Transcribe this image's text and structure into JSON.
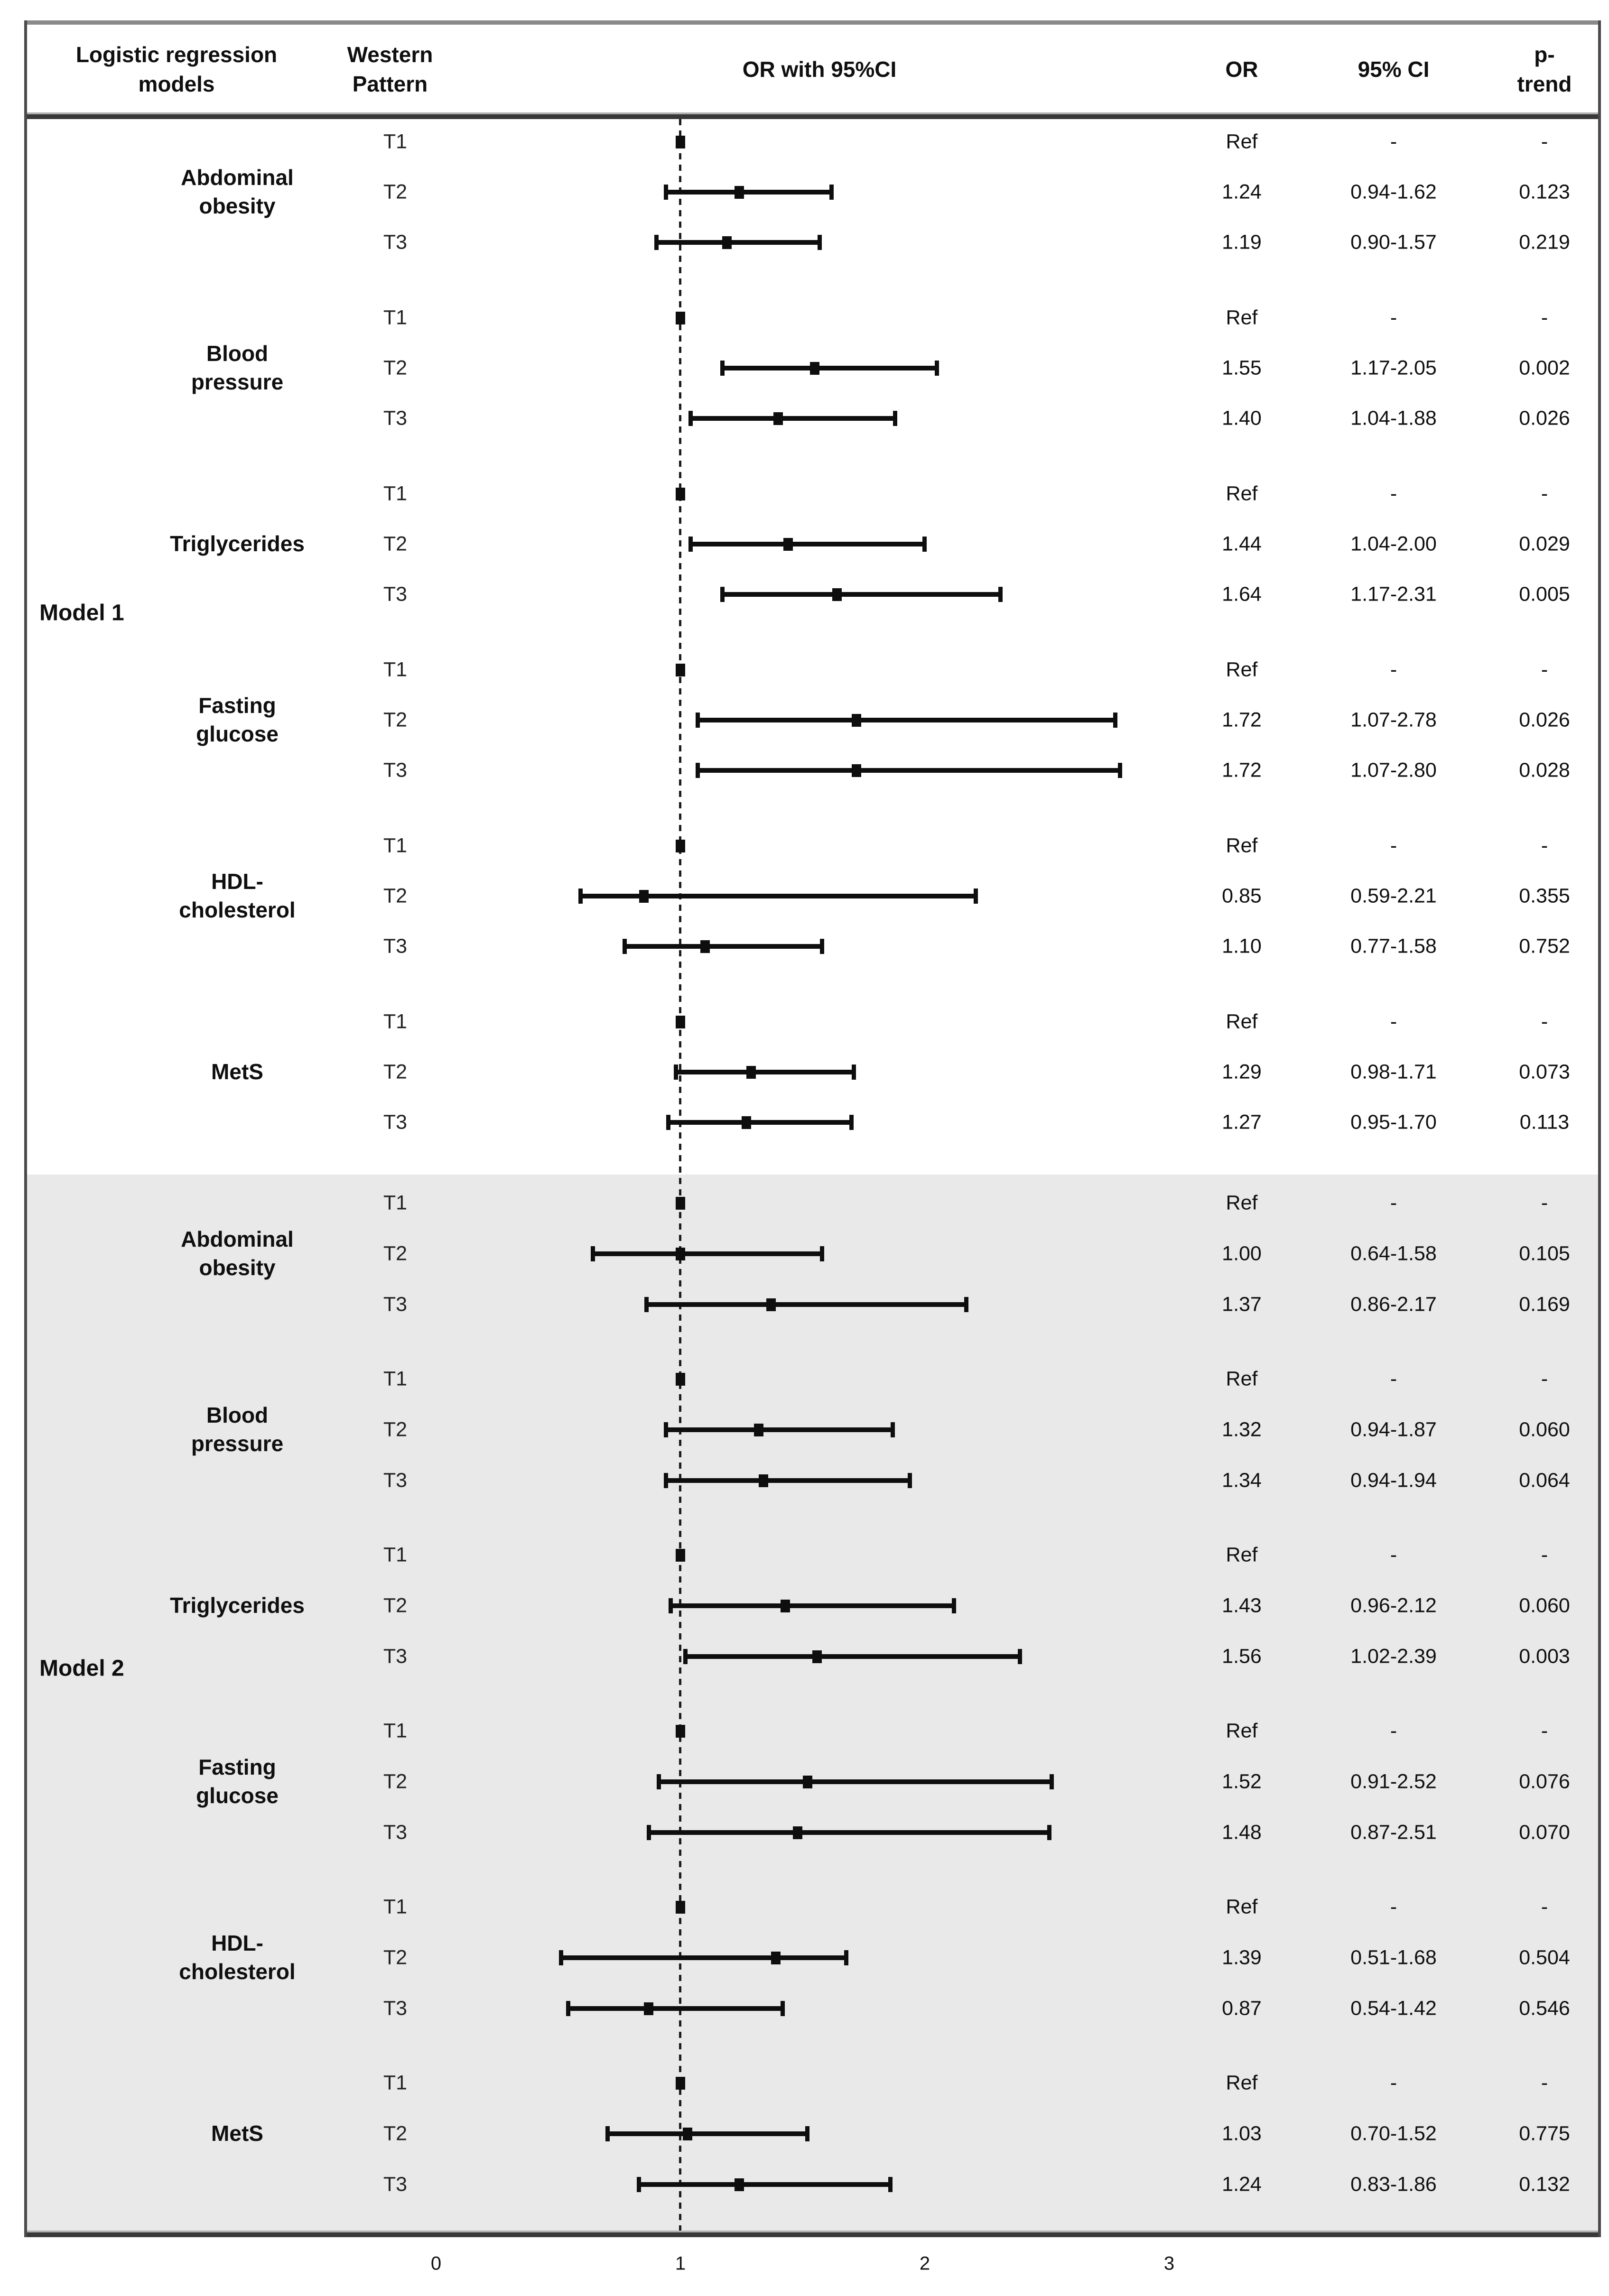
{
  "header": {
    "models_col": "Logistic regression\nmodels",
    "pattern_col": "Western\nPattern",
    "plot_col": "OR with 95%CI",
    "or_col": "OR",
    "ci_col": "95% CI",
    "p_col": "p-trend"
  },
  "axis": {
    "ticks": [
      "0",
      "1",
      "2",
      "3"
    ]
  },
  "colors": {
    "model2_section_bg": "#e9e9e9",
    "bar": "#0e0e0e",
    "heavy_rule": "#383838",
    "top_rule": "#8a8a8a",
    "reference_dash": "#1c1c1c"
  },
  "models": [
    {
      "name": "Model 1",
      "groups": [
        {
          "label": "Abdominal\nobesity",
          "rows": [
            {
              "tertile": "T1",
              "or": "Ref",
              "ci": "-",
              "p": "-"
            },
            {
              "tertile": "T2",
              "or": "1.24",
              "ci": "0.94-1.62",
              "p": "0.123"
            },
            {
              "tertile": "T3",
              "or": "1.19",
              "ci": "0.90-1.57",
              "p": "0.219"
            }
          ]
        },
        {
          "label": "Blood\npressure",
          "rows": [
            {
              "tertile": "T1",
              "or": "Ref",
              "ci": "-",
              "p": "-"
            },
            {
              "tertile": "T2",
              "or": "1.55",
              "ci": "1.17-2.05",
              "p": "0.002"
            },
            {
              "tertile": "T3",
              "or": "1.40",
              "ci": "1.04-1.88",
              "p": "0.026"
            }
          ]
        },
        {
          "label": "Triglycerides",
          "rows": [
            {
              "tertile": "T1",
              "or": "Ref",
              "ci": "-",
              "p": "-"
            },
            {
              "tertile": "T2",
              "or": "1.44",
              "ci": "1.04-2.00",
              "p": "0.029"
            },
            {
              "tertile": "T3",
              "or": "1.64",
              "ci": "1.17-2.31",
              "p": "0.005"
            }
          ]
        },
        {
          "label": "Fasting\nglucose",
          "rows": [
            {
              "tertile": "T1",
              "or": "Ref",
              "ci": "-",
              "p": "-"
            },
            {
              "tertile": "T2",
              "or": "1.72",
              "ci": "1.07-2.78",
              "p": "0.026"
            },
            {
              "tertile": "T3",
              "or": "1.72",
              "ci": "1.07-2.80",
              "p": "0.028"
            }
          ]
        },
        {
          "label": "HDL-\ncholesterol",
          "rows": [
            {
              "tertile": "T1",
              "or": "Ref",
              "ci": "-",
              "p": "-"
            },
            {
              "tertile": "T2",
              "or": "0.85",
              "ci": "0.59-2.21",
              "p": "0.355"
            },
            {
              "tertile": "T3",
              "or": "1.10",
              "ci": "0.77-1.58",
              "p": "0.752"
            }
          ]
        },
        {
          "label": "MetS",
          "rows": [
            {
              "tertile": "T1",
              "or": "Ref",
              "ci": "-",
              "p": "-"
            },
            {
              "tertile": "T2",
              "or": "1.29",
              "ci": "0.98-1.71",
              "p": "0.073"
            },
            {
              "tertile": "T3",
              "or": "1.27",
              "ci": "0.95-1.70",
              "p": "0.113"
            }
          ]
        }
      ]
    },
    {
      "name": "Model 2",
      "groups": [
        {
          "label": "Abdominal\nobesity",
          "rows": [
            {
              "tertile": "T1",
              "or": "Ref",
              "ci": "-",
              "p": "-"
            },
            {
              "tertile": "T2",
              "or": "1.00",
              "ci": "0.64-1.58",
              "p": "0.105"
            },
            {
              "tertile": "T3",
              "or": "1.37",
              "ci": "0.86-2.17",
              "p": "0.169"
            }
          ]
        },
        {
          "label": "Blood\npressure",
          "rows": [
            {
              "tertile": "T1",
              "or": "Ref",
              "ci": "-",
              "p": "-"
            },
            {
              "tertile": "T2",
              "or": "1.32",
              "ci": "0.94-1.87",
              "p": "0.060"
            },
            {
              "tertile": "T3",
              "or": "1.34",
              "ci": "0.94-1.94",
              "p": "0.064"
            }
          ]
        },
        {
          "label": "Triglycerides",
          "rows": [
            {
              "tertile": "T1",
              "or": "Ref",
              "ci": "-",
              "p": "-"
            },
            {
              "tertile": "T2",
              "or": "1.43",
              "ci": "0.96-2.12",
              "p": "0.060"
            },
            {
              "tertile": "T3",
              "or": "1.56",
              "ci": "1.02-2.39",
              "p": "0.003"
            }
          ]
        },
        {
          "label": "Fasting\nglucose",
          "rows": [
            {
              "tertile": "T1",
              "or": "Ref",
              "ci": "-",
              "p": "-"
            },
            {
              "tertile": "T2",
              "or": "1.52",
              "ci": "0.91-2.52",
              "p": "0.076"
            },
            {
              "tertile": "T3",
              "or": "1.48",
              "ci": "0.87-2.51",
              "p": "0.070"
            }
          ]
        },
        {
          "label": "HDL-\ncholesterol",
          "rows": [
            {
              "tertile": "T1",
              "or": "Ref",
              "ci": "-",
              "p": "-"
            },
            {
              "tertile": "T2",
              "or": "1.39",
              "ci": "0.51-1.68",
              "p": "0.504"
            },
            {
              "tertile": "T3",
              "or": "0.87",
              "ci": "0.54-1.42",
              "p": "0.546"
            }
          ]
        },
        {
          "label": "MetS",
          "rows": [
            {
              "tertile": "T1",
              "or": "Ref",
              "ci": "-",
              "p": "-"
            },
            {
              "tertile": "T2",
              "or": "1.03",
              "ci": "0.70-1.52",
              "p": "0.775"
            },
            {
              "tertile": "T3",
              "or": "1.24",
              "ci": "0.83-1.86",
              "p": "0.132"
            }
          ]
        }
      ]
    }
  ],
  "chart_data": {
    "type": "scatter",
    "subtype": "forest-plot",
    "title": "OR with 95%CI",
    "xlabel": "OR",
    "xlim": [
      0,
      3
    ],
    "x_ticks": [
      0,
      1,
      2,
      3
    ],
    "reference_line_x": 1,
    "grid": false,
    "legend": "none",
    "models": [
      {
        "name": "Model 1",
        "groups": [
          {
            "outcome": "Abdominal obesity",
            "points": [
              {
                "tertile": "T1",
                "or": 1.0,
                "ref": true
              },
              {
                "tertile": "T2",
                "or": 1.24,
                "ci_low": 0.94,
                "ci_high": 1.62,
                "p_trend": 0.123
              },
              {
                "tertile": "T3",
                "or": 1.19,
                "ci_low": 0.9,
                "ci_high": 1.57,
                "p_trend": 0.219
              }
            ]
          },
          {
            "outcome": "Blood pressure",
            "points": [
              {
                "tertile": "T1",
                "or": 1.0,
                "ref": true
              },
              {
                "tertile": "T2",
                "or": 1.55,
                "ci_low": 1.17,
                "ci_high": 2.05,
                "p_trend": 0.002
              },
              {
                "tertile": "T3",
                "or": 1.4,
                "ci_low": 1.04,
                "ci_high": 1.88,
                "p_trend": 0.026
              }
            ]
          },
          {
            "outcome": "Triglycerides",
            "points": [
              {
                "tertile": "T1",
                "or": 1.0,
                "ref": true
              },
              {
                "tertile": "T2",
                "or": 1.44,
                "ci_low": 1.04,
                "ci_high": 2.0,
                "p_trend": 0.029
              },
              {
                "tertile": "T3",
                "or": 1.64,
                "ci_low": 1.17,
                "ci_high": 2.31,
                "p_trend": 0.005
              }
            ]
          },
          {
            "outcome": "Fasting glucose",
            "points": [
              {
                "tertile": "T1",
                "or": 1.0,
                "ref": true
              },
              {
                "tertile": "T2",
                "or": 1.72,
                "ci_low": 1.07,
                "ci_high": 2.78,
                "p_trend": 0.026
              },
              {
                "tertile": "T3",
                "or": 1.72,
                "ci_low": 1.07,
                "ci_high": 2.8,
                "p_trend": 0.028
              }
            ]
          },
          {
            "outcome": "HDL-cholesterol",
            "points": [
              {
                "tertile": "T1",
                "or": 1.0,
                "ref": true
              },
              {
                "tertile": "T2",
                "or": 0.85,
                "ci_low": 0.59,
                "ci_high": 2.21,
                "p_trend": 0.355
              },
              {
                "tertile": "T3",
                "or": 1.1,
                "ci_low": 0.77,
                "ci_high": 1.58,
                "p_trend": 0.752
              }
            ]
          },
          {
            "outcome": "MetS",
            "points": [
              {
                "tertile": "T1",
                "or": 1.0,
                "ref": true
              },
              {
                "tertile": "T2",
                "or": 1.29,
                "ci_low": 0.98,
                "ci_high": 1.71,
                "p_trend": 0.073
              },
              {
                "tertile": "T3",
                "or": 1.27,
                "ci_low": 0.95,
                "ci_high": 1.7,
                "p_trend": 0.113
              }
            ]
          }
        ]
      },
      {
        "name": "Model 2",
        "groups": [
          {
            "outcome": "Abdominal obesity",
            "points": [
              {
                "tertile": "T1",
                "or": 1.0,
                "ref": true
              },
              {
                "tertile": "T2",
                "or": 1.0,
                "ci_low": 0.64,
                "ci_high": 1.58,
                "p_trend": 0.105
              },
              {
                "tertile": "T3",
                "or": 1.37,
                "ci_low": 0.86,
                "ci_high": 2.17,
                "p_trend": 0.169
              }
            ]
          },
          {
            "outcome": "Blood pressure",
            "points": [
              {
                "tertile": "T1",
                "or": 1.0,
                "ref": true
              },
              {
                "tertile": "T2",
                "or": 1.32,
                "ci_low": 0.94,
                "ci_high": 1.87,
                "p_trend": 0.06
              },
              {
                "tertile": "T3",
                "or": 1.34,
                "ci_low": 0.94,
                "ci_high": 1.94,
                "p_trend": 0.064
              }
            ]
          },
          {
            "outcome": "Triglycerides",
            "points": [
              {
                "tertile": "T1",
                "or": 1.0,
                "ref": true
              },
              {
                "tertile": "T2",
                "or": 1.43,
                "ci_low": 0.96,
                "ci_high": 2.12,
                "p_trend": 0.06
              },
              {
                "tertile": "T3",
                "or": 1.56,
                "ci_low": 1.02,
                "ci_high": 2.39,
                "p_trend": 0.003
              }
            ]
          },
          {
            "outcome": "Fasting glucose",
            "points": [
              {
                "tertile": "T1",
                "or": 1.0,
                "ref": true
              },
              {
                "tertile": "T2",
                "or": 1.52,
                "ci_low": 0.91,
                "ci_high": 2.52,
                "p_trend": 0.076
              },
              {
                "tertile": "T3",
                "or": 1.48,
                "ci_low": 0.87,
                "ci_high": 2.51,
                "p_trend": 0.07
              }
            ]
          },
          {
            "outcome": "HDL-cholesterol",
            "points": [
              {
                "tertile": "T1",
                "or": 1.0,
                "ref": true
              },
              {
                "tertile": "T2",
                "or": 1.39,
                "ci_low": 0.51,
                "ci_high": 1.68,
                "p_trend": 0.504
              },
              {
                "tertile": "T3",
                "or": 0.87,
                "ci_low": 0.54,
                "ci_high": 1.42,
                "p_trend": 0.546
              }
            ]
          },
          {
            "outcome": "MetS",
            "points": [
              {
                "tertile": "T1",
                "or": 1.0,
                "ref": true
              },
              {
                "tertile": "T2",
                "or": 1.03,
                "ci_low": 0.7,
                "ci_high": 1.52,
                "p_trend": 0.775
              },
              {
                "tertile": "T3",
                "or": 1.24,
                "ci_low": 0.83,
                "ci_high": 1.86,
                "p_trend": 0.132
              }
            ]
          }
        ]
      }
    ]
  }
}
